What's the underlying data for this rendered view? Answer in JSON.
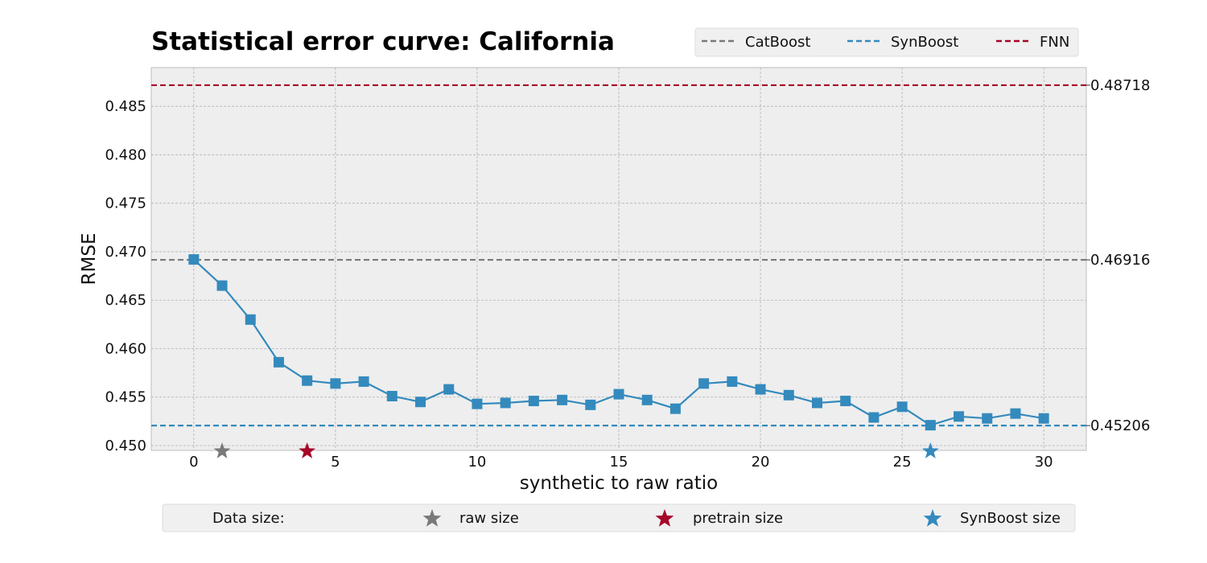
{
  "chart_data": {
    "type": "line",
    "title": "Statistical error curve: California",
    "xlabel": "synthetic to raw ratio",
    "ylabel": "RMSE",
    "xlim": [
      -1.5,
      31.5
    ],
    "ylim": [
      0.4495,
      0.489
    ],
    "grid": true,
    "xticks": [
      "0",
      "5",
      "10",
      "15",
      "20",
      "25",
      "30"
    ],
    "xtick_values": [
      0,
      5,
      10,
      15,
      20,
      25,
      30
    ],
    "yticks": [
      "0.450",
      "0.455",
      "0.460",
      "0.465",
      "0.470",
      "0.475",
      "0.480",
      "0.485"
    ],
    "ytick_values": [
      0.45,
      0.455,
      0.46,
      0.465,
      0.47,
      0.475,
      0.48,
      0.485
    ],
    "series": [
      {
        "x": [
          0,
          1,
          2,
          3,
          4,
          5,
          6,
          7,
          8,
          9,
          10,
          11,
          12,
          13,
          14,
          15,
          16,
          17,
          18,
          19,
          20,
          21,
          22,
          23,
          24,
          25,
          26,
          27,
          28,
          29,
          30
        ],
        "values": [
          0.4692,
          0.4665,
          0.463,
          0.4586,
          0.4567,
          0.4564,
          0.4566,
          0.4551,
          0.4545,
          0.4558,
          0.4543,
          0.4544,
          0.4546,
          0.4547,
          0.4542,
          0.4553,
          0.4547,
          0.4538,
          0.4564,
          0.4566,
          0.4558,
          0.4552,
          0.4544,
          0.4546,
          0.4529,
          0.454,
          0.4521,
          0.453,
          0.4528,
          0.4533,
          0.4528
        ],
        "color": "#348ABD",
        "marker": "square"
      }
    ],
    "reference_lines": [
      {
        "name": "CatBoost",
        "value": 0.46916,
        "label": "0.46916",
        "color": "#7A7A7A"
      },
      {
        "name": "SynBoost",
        "value": 0.45206,
        "label": "0.45206",
        "color": "#348ABD"
      },
      {
        "name": "FNN",
        "value": 0.48718,
        "label": "0.48718",
        "color": "#A60628"
      }
    ],
    "size_markers": [
      {
        "name": "raw size",
        "x": 1,
        "color": "#7A7A7A"
      },
      {
        "name": "pretrain size",
        "x": 4,
        "color": "#A60628"
      },
      {
        "name": "SynBoost size",
        "x": 26,
        "color": "#348ABD"
      }
    ],
    "legend_top": [
      "CatBoost",
      "SynBoost",
      "FNN"
    ],
    "legend_top_placement": "top-right",
    "legend_bottom_title": "Data size:",
    "legend_bottom_placement": "bottom-center"
  }
}
